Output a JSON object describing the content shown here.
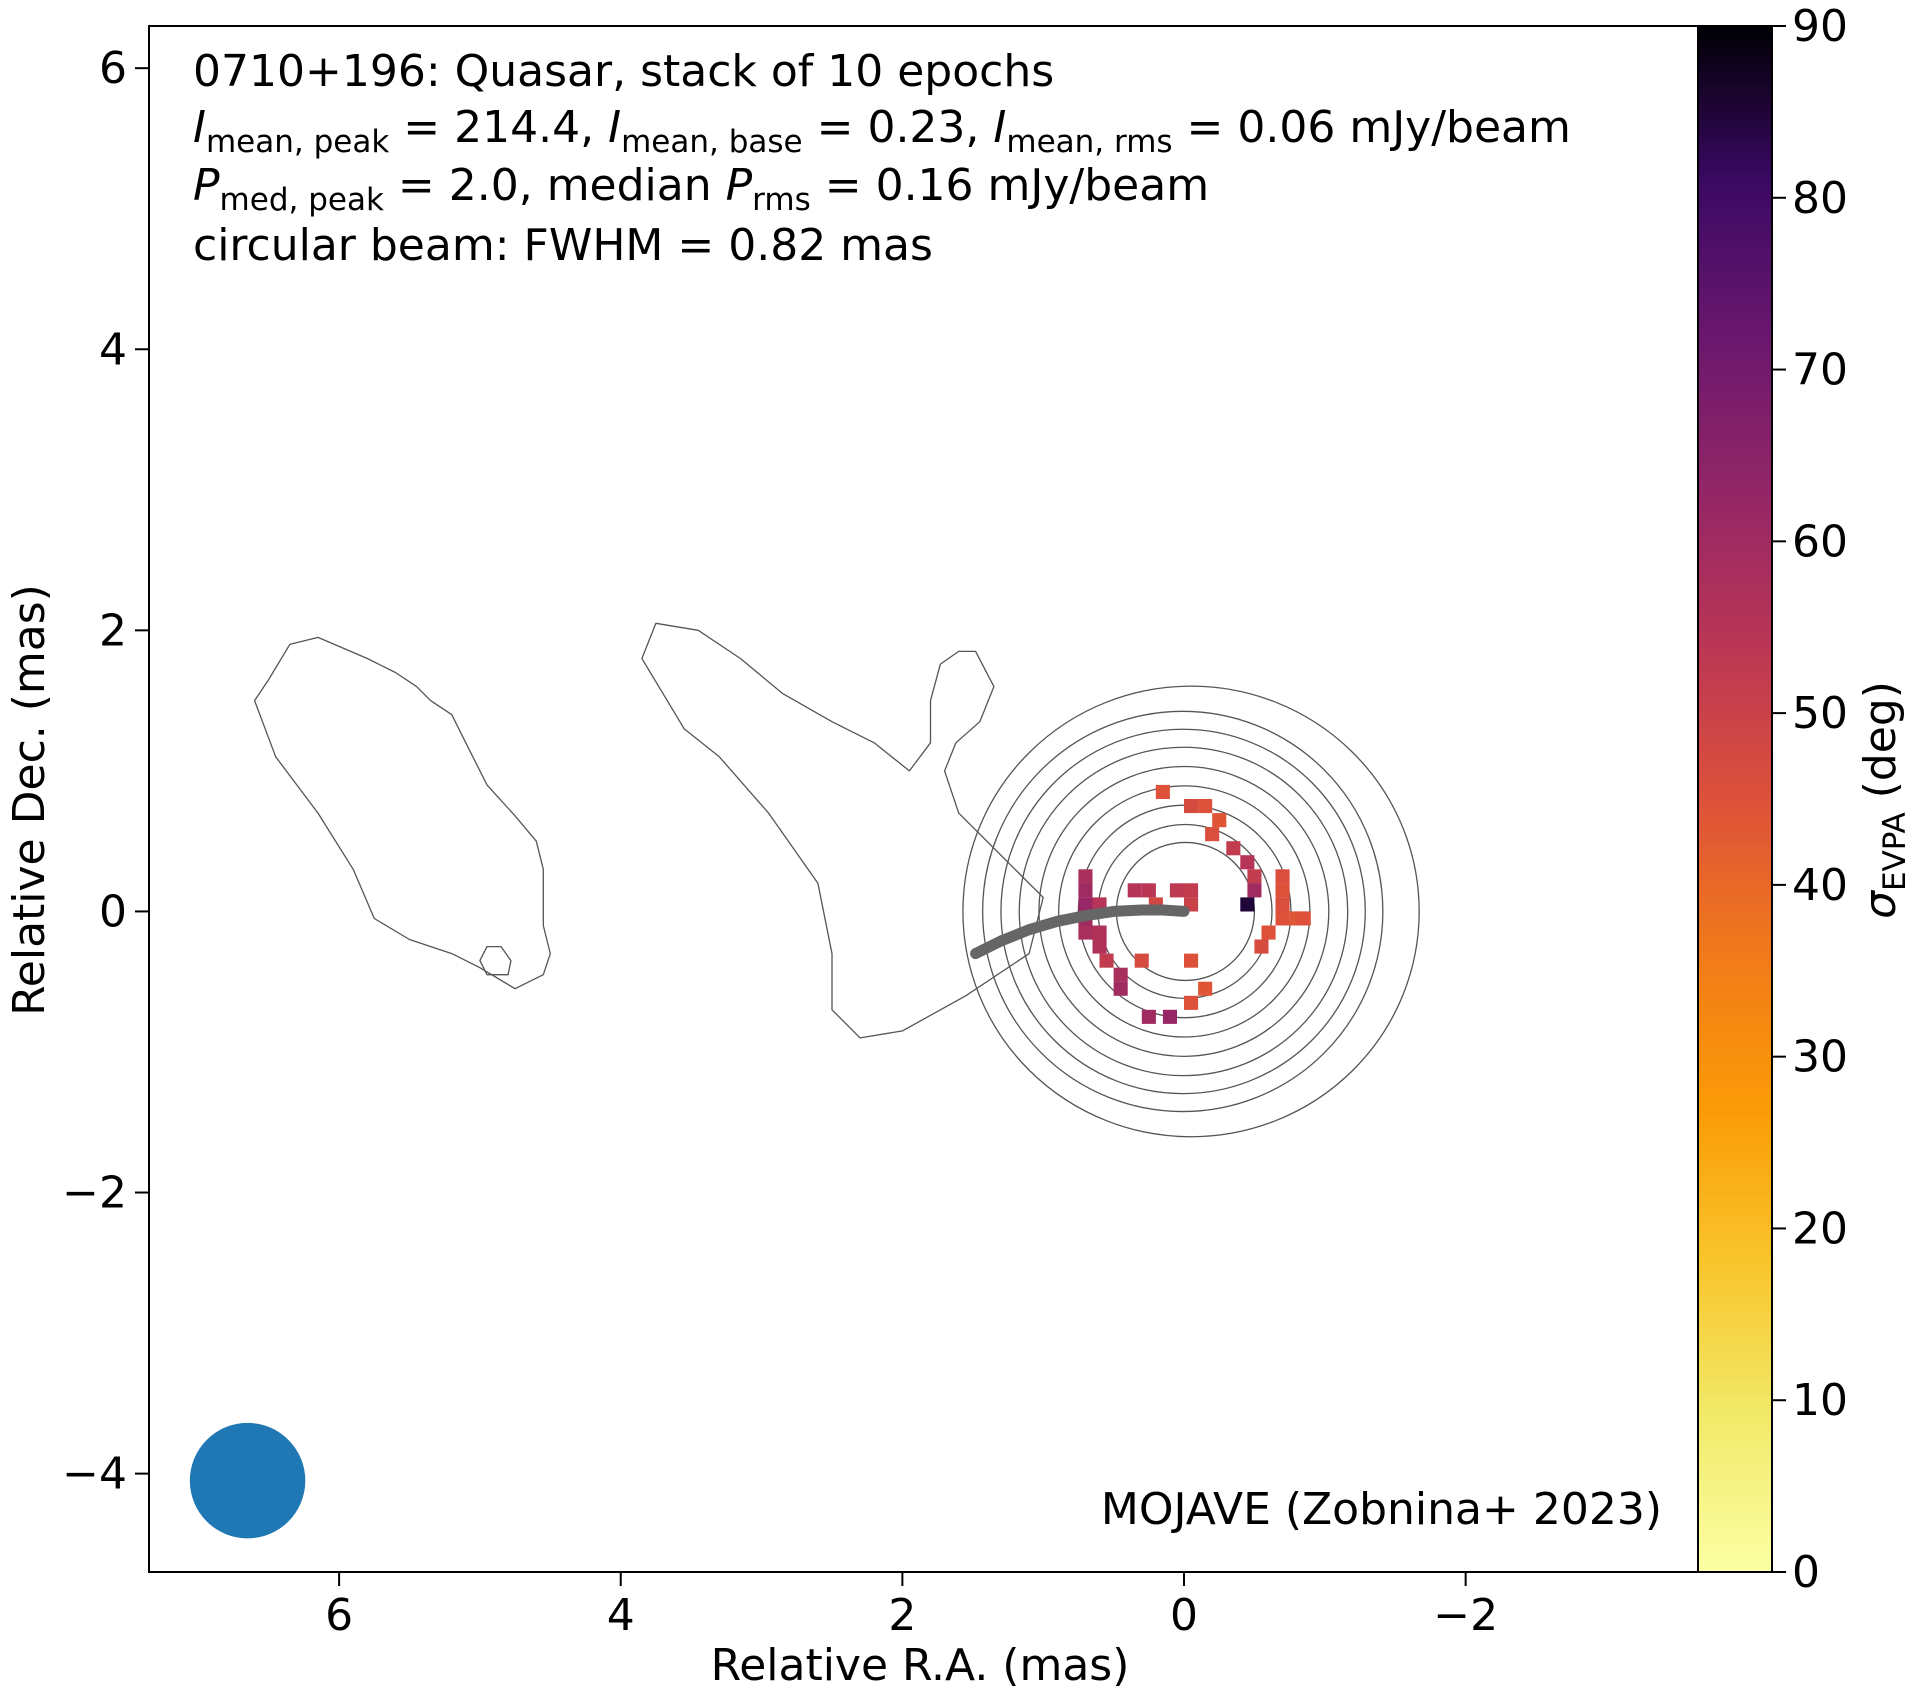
{
  "chart_data": {
    "type": "heatmap",
    "title_lines": [
      [
        "0710+196: Quasar, stack of 10 epochs"
      ],
      [
        "I",
        "mean, peak",
        " = 214.4, ",
        "I",
        "mean, base",
        " = 0.23, ",
        "I",
        "mean, rms",
        " = 0.06 mJy/beam"
      ],
      [
        "P",
        "med, peak",
        " = 2.0, median ",
        "P",
        "rms",
        " = 0.16 mJy/beam"
      ],
      [
        "circular beam: FWHM = 0.82 mas"
      ]
    ],
    "xlabel": "Relative R.A. (mas)",
    "ylabel": "Relative Dec. (mas)",
    "xlim": [
      7.35,
      -3.65
    ],
    "ylim": [
      -4.7,
      6.3
    ],
    "xticks": [
      6,
      4,
      2,
      0,
      -2
    ],
    "xtick_labels": [
      "6",
      "4",
      "2",
      "0",
      "−2"
    ],
    "yticks": [
      -4,
      -2,
      0,
      2,
      4,
      6
    ],
    "ytick_labels": [
      "−4",
      "−2",
      "0",
      "2",
      "4",
      "6"
    ],
    "colorbar": {
      "label_main": "σ",
      "label_sub": "EVPA",
      "label_unit": " (deg)",
      "range": [
        0,
        90
      ],
      "ticks": [
        0,
        10,
        20,
        30,
        40,
        50,
        60,
        70,
        80,
        90
      ],
      "tick_labels": [
        "0",
        "10",
        "20",
        "30",
        "40",
        "50",
        "60",
        "70",
        "80",
        "90"
      ],
      "colormap": "inferno_r"
    },
    "annotation": "MOJAVE (Zobnina+ 2023)",
    "beam": {
      "x": 6.65,
      "y": -4.05,
      "fwhm": 0.82,
      "color": "#1f77b4"
    },
    "ridgeline": {
      "color": "#666666",
      "points": [
        [
          0.0,
          0.0
        ],
        [
          0.15,
          0.01
        ],
        [
          0.3,
          0.01
        ],
        [
          0.5,
          0.0
        ],
        [
          0.7,
          -0.03
        ],
        [
          0.9,
          -0.07
        ],
        [
          1.1,
          -0.13
        ],
        [
          1.3,
          -0.21
        ],
        [
          1.48,
          -0.3
        ]
      ]
    },
    "contour_levels": {
      "islands": [
        [
          [
            4.78,
            -0.35
          ],
          [
            4.8,
            -0.45
          ],
          [
            4.95,
            -0.45
          ],
          [
            5.0,
            -0.35
          ],
          [
            4.95,
            -0.25
          ],
          [
            4.85,
            -0.25
          ]
        ],
        [
          [
            4.5,
            -0.3
          ],
          [
            4.55,
            -0.1
          ],
          [
            4.55,
            0.3
          ],
          [
            4.6,
            0.5
          ],
          [
            4.75,
            0.68
          ],
          [
            4.95,
            0.9
          ],
          [
            5.1,
            1.2
          ],
          [
            5.2,
            1.4
          ],
          [
            5.35,
            1.5
          ],
          [
            5.45,
            1.6
          ],
          [
            5.6,
            1.7
          ],
          [
            5.8,
            1.8
          ],
          [
            6.15,
            1.95
          ],
          [
            6.35,
            1.9
          ],
          [
            6.5,
            1.65
          ],
          [
            6.6,
            1.5
          ],
          [
            6.45,
            1.1
          ],
          [
            6.15,
            0.7
          ],
          [
            5.9,
            0.3
          ],
          [
            5.75,
            -0.05
          ],
          [
            5.5,
            -0.2
          ],
          [
            5.2,
            -0.3
          ],
          [
            5.0,
            -0.4
          ],
          [
            4.75,
            -0.55
          ],
          [
            4.55,
            -0.45
          ]
        ]
      ],
      "lobe": [
        [
          1.73,
          1.76
        ],
        [
          1.6,
          1.85
        ],
        [
          1.48,
          1.85
        ],
        [
          1.35,
          1.6
        ],
        [
          1.45,
          1.35
        ],
        [
          1.62,
          1.2
        ],
        [
          1.7,
          1.0
        ],
        [
          1.6,
          0.7
        ],
        [
          1.2,
          0.3
        ],
        [
          1.0,
          0.1
        ],
        [
          1.1,
          -0.3
        ],
        [
          1.55,
          -0.6
        ],
        [
          2.0,
          -0.85
        ],
        [
          2.3,
          -0.9
        ],
        [
          2.5,
          -0.7
        ],
        [
          2.5,
          -0.3
        ],
        [
          2.6,
          0.2
        ],
        [
          2.95,
          0.7
        ],
        [
          3.3,
          1.1
        ],
        [
          3.55,
          1.3
        ],
        [
          3.7,
          1.55
        ],
        [
          3.85,
          1.8
        ],
        [
          3.75,
          2.05
        ],
        [
          3.45,
          2.0
        ],
        [
          3.15,
          1.8
        ],
        [
          2.85,
          1.55
        ],
        [
          2.5,
          1.35
        ],
        [
          2.2,
          1.2
        ],
        [
          1.95,
          1.0
        ],
        [
          1.8,
          1.2
        ],
        [
          1.8,
          1.5
        ]
      ]
    }
  },
  "grid": false
}
